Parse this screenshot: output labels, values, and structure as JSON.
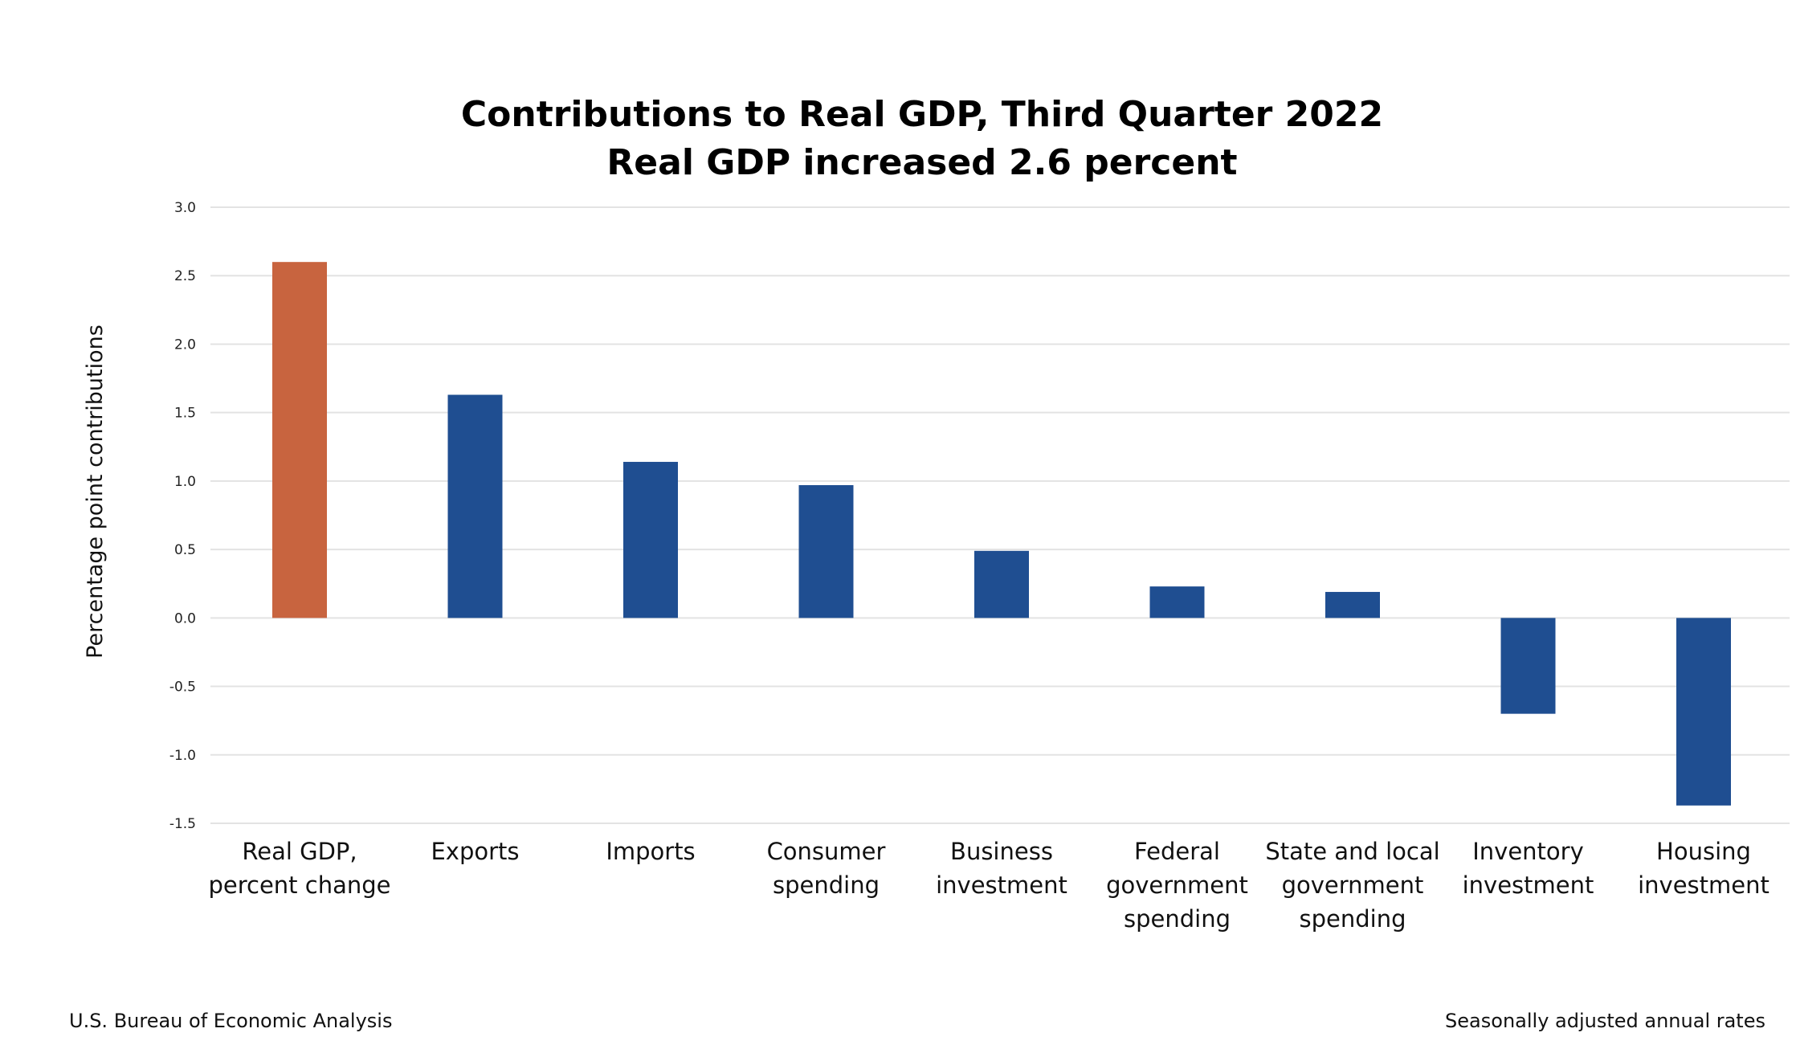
{
  "chart_data": {
    "type": "bar",
    "title": "Contributions to Real GDP, Third Quarter 2022",
    "subtitle": "Real GDP increased 2.6 percent",
    "ylabel": "Percentage point contributions",
    "xlabel": "",
    "ylim": [
      -1.5,
      3.0
    ],
    "yticks": [
      "3.0",
      "2.5",
      "2.0",
      "1.5",
      "1.0",
      "0.5",
      "0.0",
      "-0.5",
      "-1.0",
      "-1.5"
    ],
    "grid": true,
    "categories": [
      [
        "Real GDP,",
        "percent change"
      ],
      [
        "Exports"
      ],
      [
        "Imports"
      ],
      [
        "Consumer",
        "spending"
      ],
      [
        "Business",
        "investment"
      ],
      [
        "Federal",
        "government",
        "spending"
      ],
      [
        "State and local",
        "government",
        "spending"
      ],
      [
        "Inventory",
        "investment"
      ],
      [
        "Housing",
        "investment"
      ]
    ],
    "values": [
      2.6,
      1.63,
      1.14,
      0.97,
      0.49,
      0.23,
      0.19,
      -0.7,
      -1.37
    ],
    "colors": [
      "#c8643f",
      "#1f4e91",
      "#1f4e91",
      "#1f4e91",
      "#1f4e91",
      "#1f4e91",
      "#1f4e91",
      "#1f4e91",
      "#1f4e91"
    ],
    "gridColor": "#e3e3e3"
  },
  "footer": {
    "source": "U.S. Bureau of Economic Analysis",
    "note": "Seasonally adjusted annual rates"
  }
}
